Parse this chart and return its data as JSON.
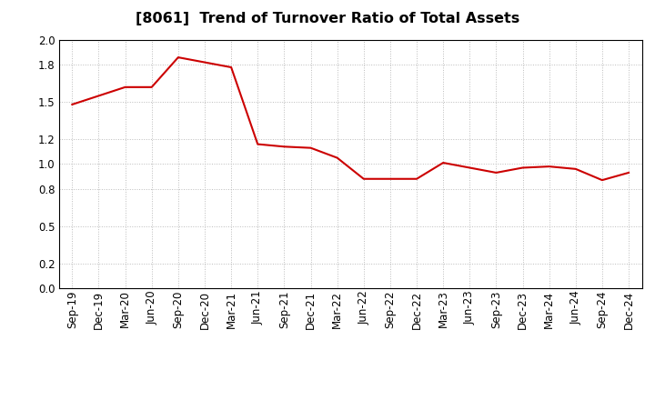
{
  "title": "[8061]  Trend of Turnover Ratio of Total Assets",
  "x_labels": [
    "Sep-19",
    "Dec-19",
    "Mar-20",
    "Jun-20",
    "Sep-20",
    "Dec-20",
    "Mar-21",
    "Jun-21",
    "Sep-21",
    "Dec-21",
    "Mar-22",
    "Jun-22",
    "Sep-22",
    "Dec-22",
    "Mar-23",
    "Jun-23",
    "Sep-23",
    "Dec-23",
    "Mar-24",
    "Jun-24",
    "Sep-24",
    "Dec-24"
  ],
  "y_values": [
    1.48,
    1.55,
    1.62,
    1.62,
    1.86,
    1.82,
    1.78,
    1.16,
    1.14,
    1.13,
    1.05,
    0.88,
    0.88,
    0.88,
    1.01,
    0.97,
    0.93,
    0.97,
    0.98,
    0.96,
    0.87,
    0.93
  ],
  "line_color": "#cc0000",
  "line_width": 1.5,
  "ylim": [
    0.0,
    2.0
  ],
  "yticks": [
    0.0,
    0.2,
    0.5,
    0.8,
    1.0,
    1.2,
    1.5,
    1.8,
    2.0
  ],
  "background_color": "#ffffff",
  "grid_color": "#bbbbbb",
  "title_fontsize": 11.5,
  "tick_fontsize": 8.5
}
